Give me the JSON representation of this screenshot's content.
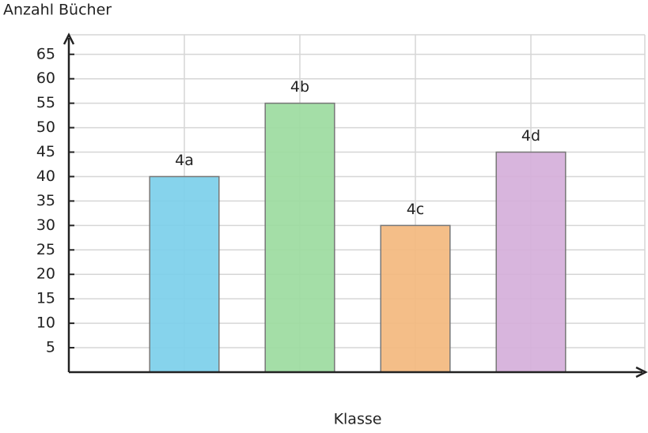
{
  "chart_data": {
    "type": "bar",
    "y_label": "Anzahl Bücher",
    "x_label": "Klasse",
    "categories": [
      "4a",
      "4b",
      "4c",
      "4d"
    ],
    "values": [
      40,
      55,
      30,
      45
    ],
    "colors": [
      "#7ccfea",
      "#9cdb9f",
      "#f3b97e",
      "#d5afda"
    ],
    "ylim": [
      0,
      69
    ],
    "yticks": [
      5,
      10,
      15,
      20,
      25,
      30,
      35,
      40,
      45,
      50,
      55,
      60,
      65
    ],
    "grid": true
  }
}
